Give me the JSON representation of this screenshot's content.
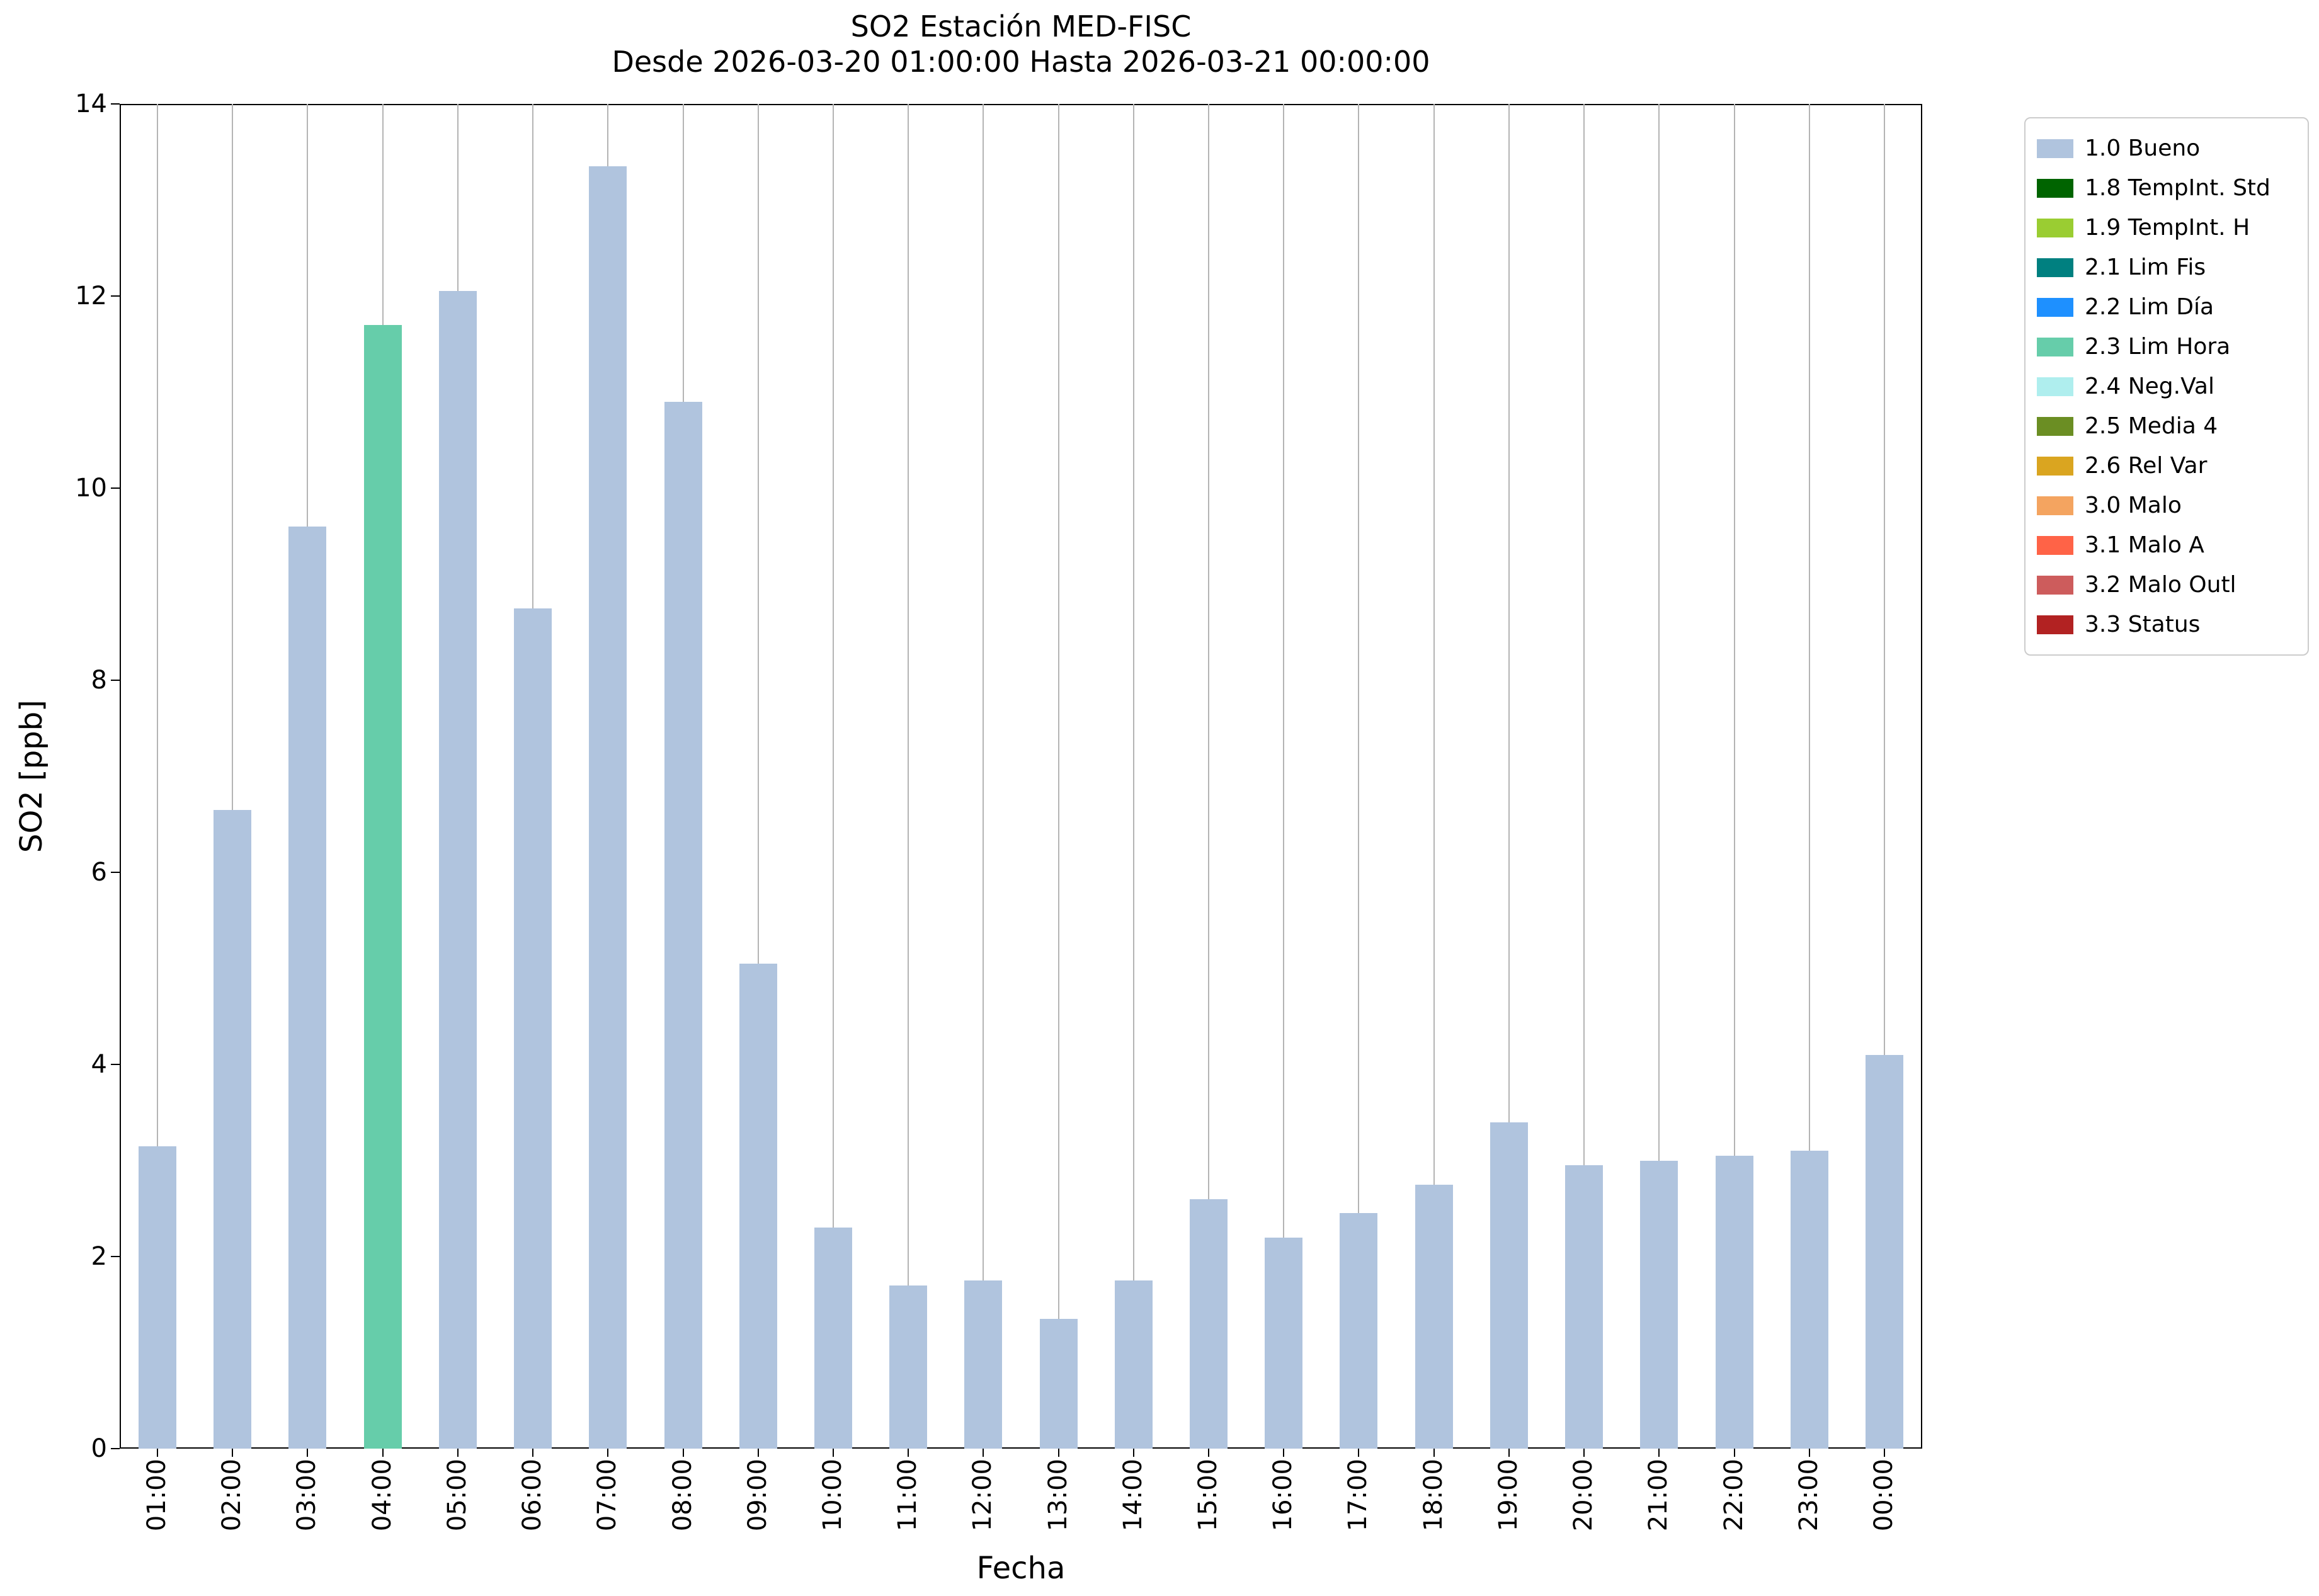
{
  "chart_data": {
    "type": "bar",
    "title": "SO2 Estación MED-FISC",
    "subtitle": "Desde 2026-03-20 01:00:00 Hasta 2026-03-21 00:00:00",
    "xlabel": "Fecha",
    "ylabel": "SO2 [ppb]",
    "ylim": [
      0,
      14
    ],
    "yticks": [
      0,
      2,
      4,
      6,
      8,
      10,
      12,
      14
    ],
    "grid": "vertical-only",
    "gridline_color": "#b4b4b4",
    "legend_position": "outside-top-right",
    "categories": [
      "01:00",
      "02:00",
      "03:00",
      "04:00",
      "05:00",
      "06:00",
      "07:00",
      "08:00",
      "09:00",
      "10:00",
      "11:00",
      "12:00",
      "13:00",
      "14:00",
      "15:00",
      "16:00",
      "17:00",
      "18:00",
      "19:00",
      "20:00",
      "21:00",
      "22:00",
      "23:00",
      "00:00"
    ],
    "values": [
      3.15,
      6.65,
      9.6,
      11.7,
      12.05,
      8.75,
      13.35,
      10.9,
      5.05,
      2.3,
      1.7,
      1.75,
      1.35,
      1.75,
      2.6,
      2.2,
      2.45,
      2.75,
      3.4,
      2.95,
      3.0,
      3.05,
      3.1,
      4.1
    ],
    "bar_flags": [
      "1.0 Bueno",
      "1.0 Bueno",
      "1.0 Bueno",
      "2.3 Lim Hora",
      "1.0 Bueno",
      "1.0 Bueno",
      "1.0 Bueno",
      "1.0 Bueno",
      "1.0 Bueno",
      "1.0 Bueno",
      "1.0 Bueno",
      "1.0 Bueno",
      "1.0 Bueno",
      "1.0 Bueno",
      "1.0 Bueno",
      "1.0 Bueno",
      "1.0 Bueno",
      "1.0 Bueno",
      "1.0 Bueno",
      "1.0 Bueno",
      "1.0 Bueno",
      "1.0 Bueno",
      "1.0 Bueno",
      "1.0 Bueno"
    ],
    "default_color": "#b0c4de",
    "legend": [
      {
        "label": "1.0 Bueno",
        "color": "#b0c4de"
      },
      {
        "label": "1.8 TempInt. Std",
        "color": "#006400"
      },
      {
        "label": "1.9 TempInt. H",
        "color": "#9acd32"
      },
      {
        "label": "2.1 Lim Fis",
        "color": "#008080"
      },
      {
        "label": "2.2 Lim Día",
        "color": "#1e90ff"
      },
      {
        "label": "2.3 Lim Hora",
        "color": "#66cdaa"
      },
      {
        "label": "2.4 Neg.Val",
        "color": "#afeeee"
      },
      {
        "label": "2.5 Media 4",
        "color": "#6b8e23"
      },
      {
        "label": "2.6 Rel Var",
        "color": "#daa520"
      },
      {
        "label": "3.0 Malo",
        "color": "#f4a460"
      },
      {
        "label": "3.1 Malo A",
        "color": "#ff6347"
      },
      {
        "label": "3.2 Malo Outl",
        "color": "#cd5c5c"
      },
      {
        "label": "3.3 Status",
        "color": "#b22222"
      }
    ]
  }
}
